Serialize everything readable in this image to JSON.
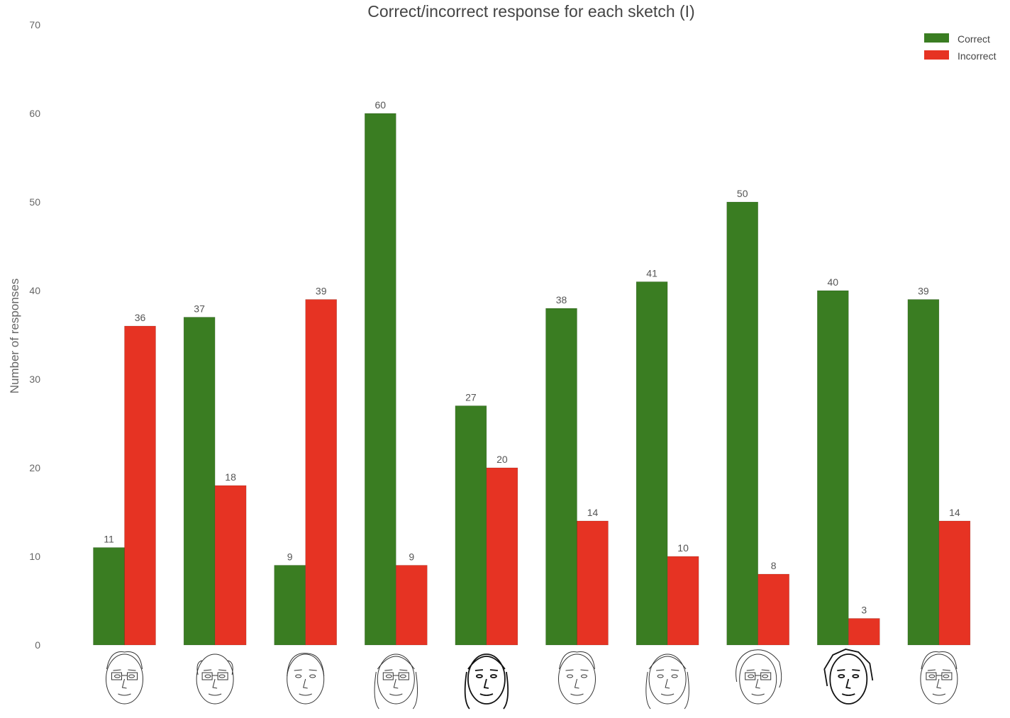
{
  "chart_data": {
    "type": "bar",
    "title": "Correct/incorrect response for each sketch (I)",
    "xlabel": "",
    "ylabel": "Number of responses",
    "ylim": [
      0,
      70
    ],
    "yticks": [
      "0",
      "10",
      "20",
      "30",
      "40",
      "50",
      "60",
      "70"
    ],
    "grid": false,
    "legend_position": "top-right",
    "categories": [
      "sketch-1",
      "sketch-2",
      "sketch-3",
      "sketch-4",
      "sketch-5",
      "sketch-6",
      "sketch-7",
      "sketch-8",
      "sketch-9",
      "sketch-10"
    ],
    "series": [
      {
        "name": "Correct",
        "color": "#3a7d22",
        "values": [
          11,
          37,
          9,
          60,
          27,
          38,
          41,
          50,
          40,
          39
        ]
      },
      {
        "name": "Incorrect",
        "color": "#e63323",
        "values": [
          36,
          18,
          39,
          9,
          20,
          14,
          10,
          8,
          3,
          14
        ]
      }
    ],
    "x_tick_icons": [
      "face-sketch-icon",
      "face-sketch-icon",
      "face-sketch-icon",
      "face-sketch-icon",
      "face-sketch-icon",
      "face-sketch-icon",
      "face-sketch-icon",
      "face-sketch-icon",
      "face-sketch-icon",
      "face-sketch-icon"
    ]
  }
}
